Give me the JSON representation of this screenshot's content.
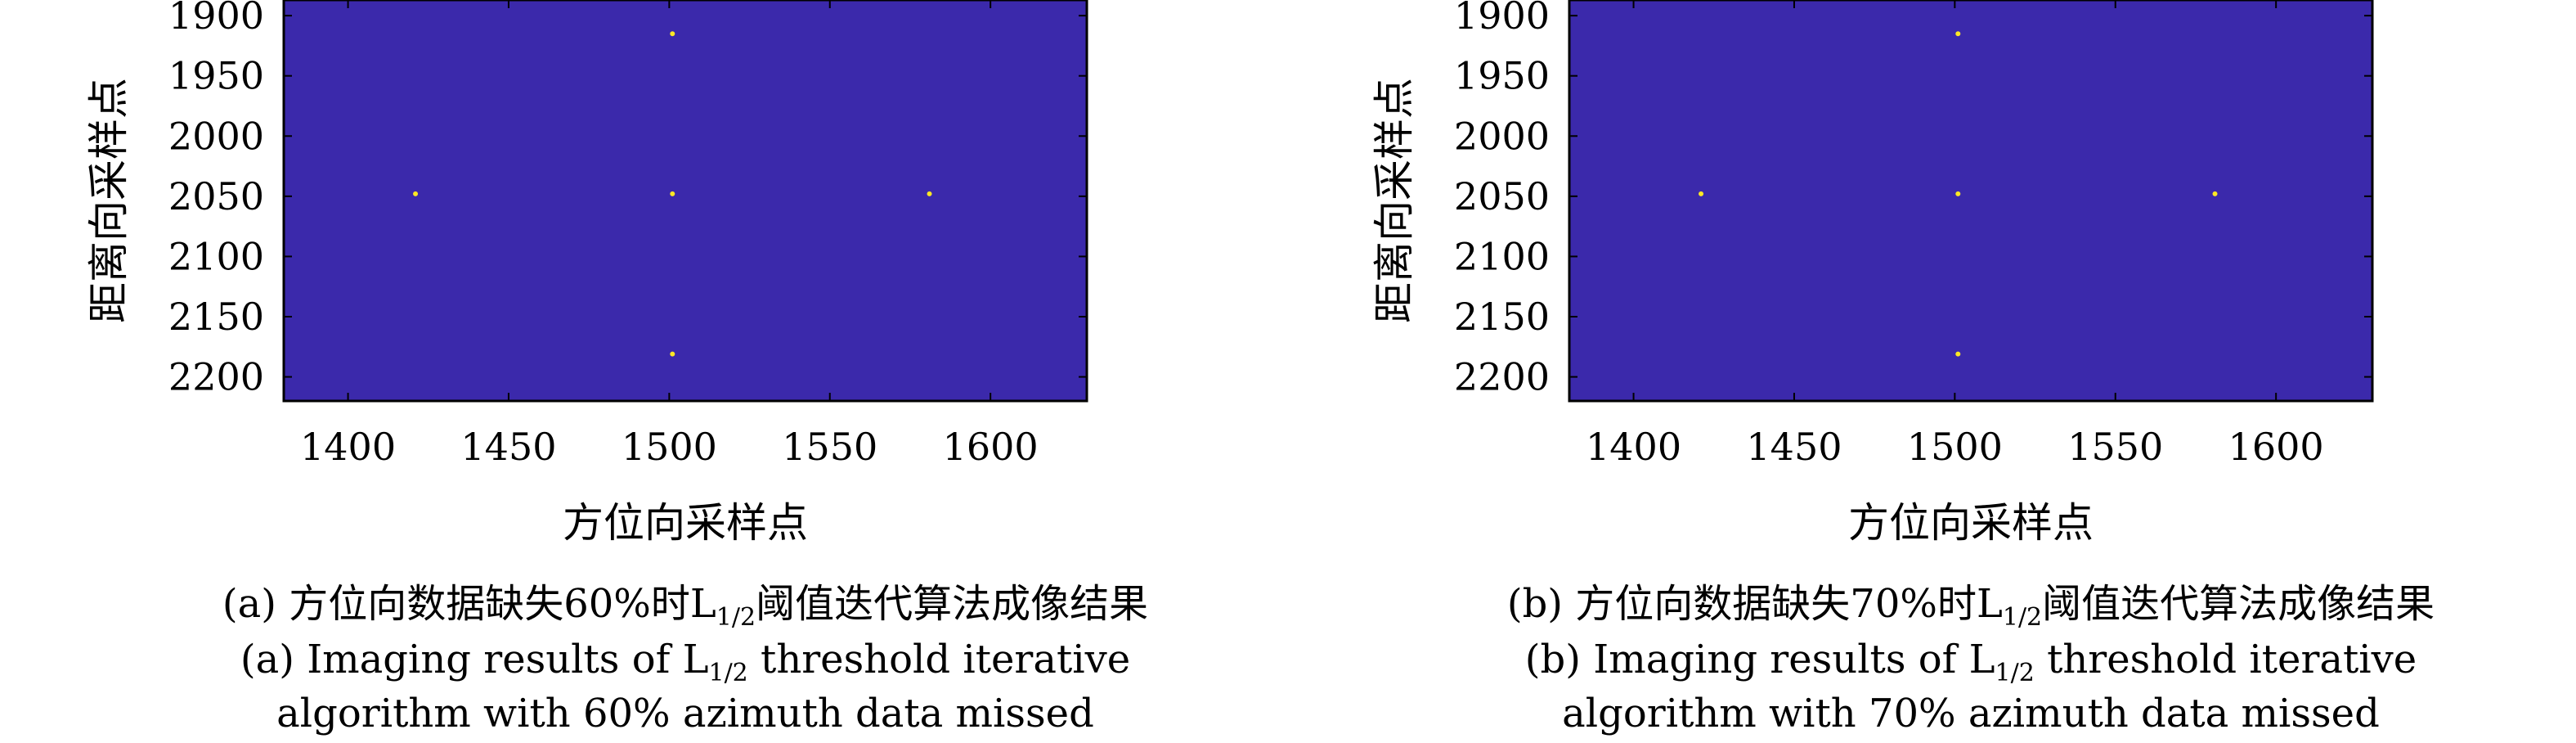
{
  "colors": {
    "background": "#3b29ab",
    "point": "#fde725",
    "frame": "#000000"
  },
  "chart_data": [
    {
      "type": "scatter",
      "panel": "a",
      "xlabel": "方位向采样点",
      "ylabel": "距离向采样点",
      "xlim": [
        1380,
        1630
      ],
      "ylim": [
        1887,
        2220
      ],
      "y_reversed": true,
      "xticks": [
        1400,
        1450,
        1500,
        1550,
        1600
      ],
      "yticks": [
        1900,
        1950,
        2000,
        2050,
        2100,
        2150,
        2200
      ],
      "x": [
        1501,
        1421,
        1501,
        1581,
        1501
      ],
      "y": [
        1915,
        2048,
        2048,
        2048,
        2181
      ],
      "caption_cn": {
        "prefix": "(a) 方位向数据缺失60%时L",
        "sub": "1/2",
        "suffix": "阈值迭代算法成像结果"
      },
      "caption_en_1": {
        "prefix": "(a) Imaging results of L",
        "sub": "1/2",
        "suffix": " threshold iterative"
      },
      "caption_en_2": "algorithm with 60% azimuth data missed"
    },
    {
      "type": "scatter",
      "panel": "b",
      "xlabel": "方位向采样点",
      "ylabel": "距离向采样点",
      "xlim": [
        1380,
        1630
      ],
      "ylim": [
        1887,
        2220
      ],
      "y_reversed": true,
      "xticks": [
        1400,
        1450,
        1500,
        1550,
        1600
      ],
      "yticks": [
        1900,
        1950,
        2000,
        2050,
        2100,
        2150,
        2200
      ],
      "x": [
        1501,
        1421,
        1501,
        1581,
        1501
      ],
      "y": [
        1915,
        2048,
        2048,
        2048,
        2181
      ],
      "caption_cn": {
        "prefix": "(b) 方位向数据缺失70%时L",
        "sub": "1/2",
        "suffix": "阈值迭代算法成像结果"
      },
      "caption_en_1": {
        "prefix": "(b) Imaging results of L",
        "sub": "1/2",
        "suffix": " threshold iterative"
      },
      "caption_en_2": "algorithm with 70% azimuth data missed"
    }
  ]
}
